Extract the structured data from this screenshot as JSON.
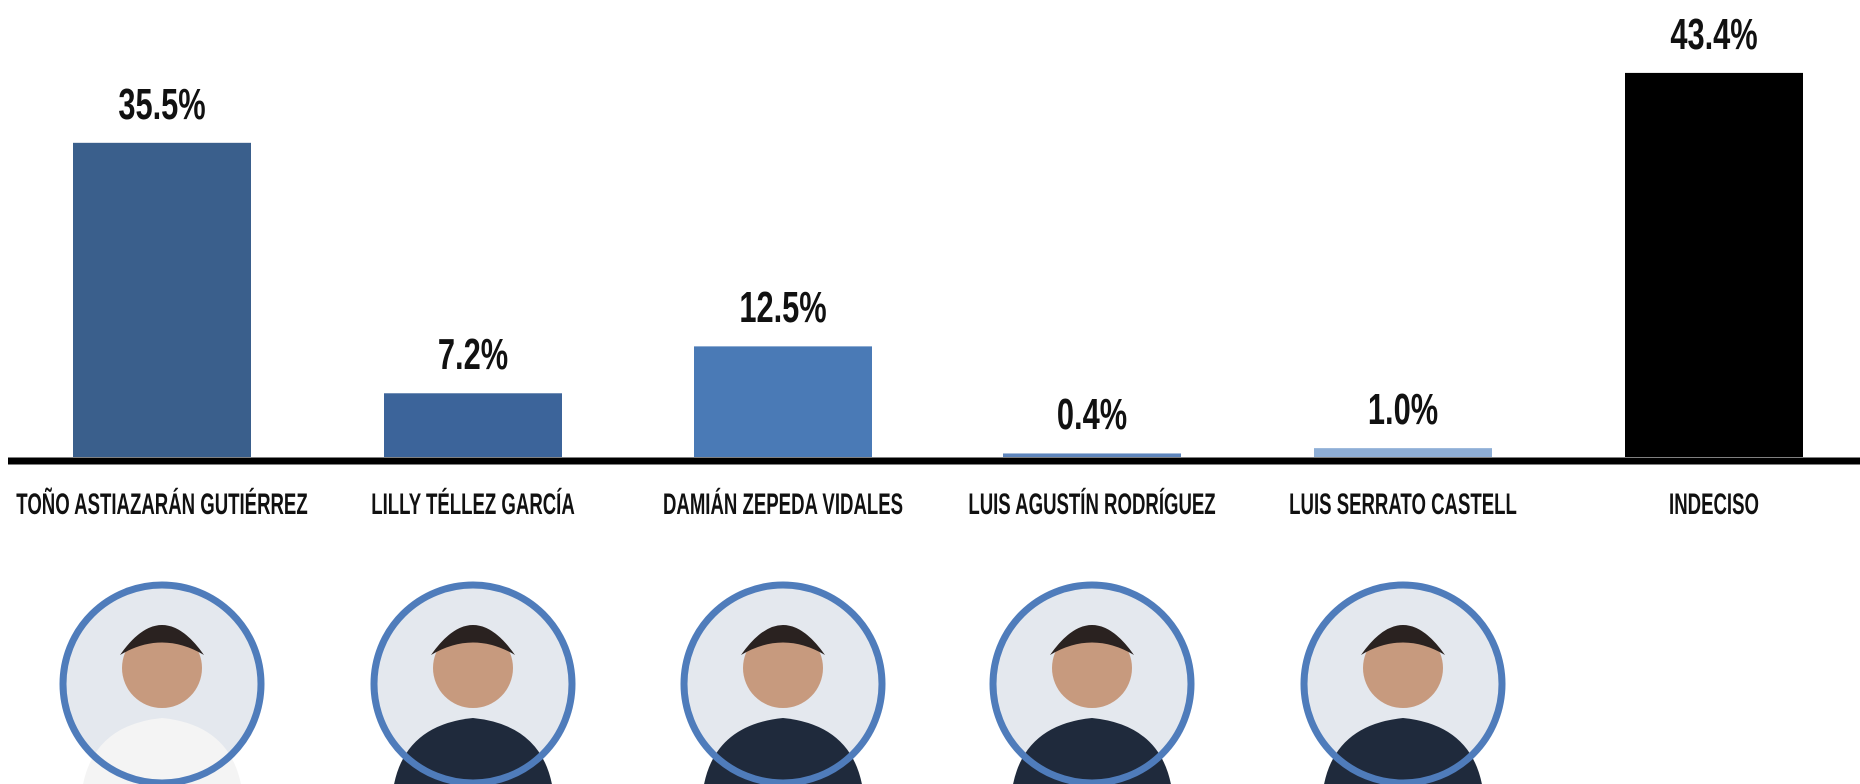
{
  "chart_data": {
    "type": "bar",
    "categories": [
      "TOÑO ASTIAZARÁN GUTIÉRREZ",
      "LILLY TÉLLEZ GARCÍA",
      "DAMIÁN ZEPEDA VIDALES",
      "LUIS AGUSTÍN RODRÍGUEZ",
      "LUIS SERRATO CASTELL",
      "INDECISO"
    ],
    "values": [
      35.5,
      7.2,
      12.5,
      0.4,
      1.0,
      43.4
    ],
    "value_labels": [
      "35.5%",
      "7.2%",
      "12.5%",
      "0.4%",
      "1.0%",
      "43.4%"
    ],
    "colors": [
      "#3a5f8c",
      "#3c649a",
      "#4a7ab6",
      "#5f86bd",
      "#8eaed6",
      "#000000"
    ]
  }
}
